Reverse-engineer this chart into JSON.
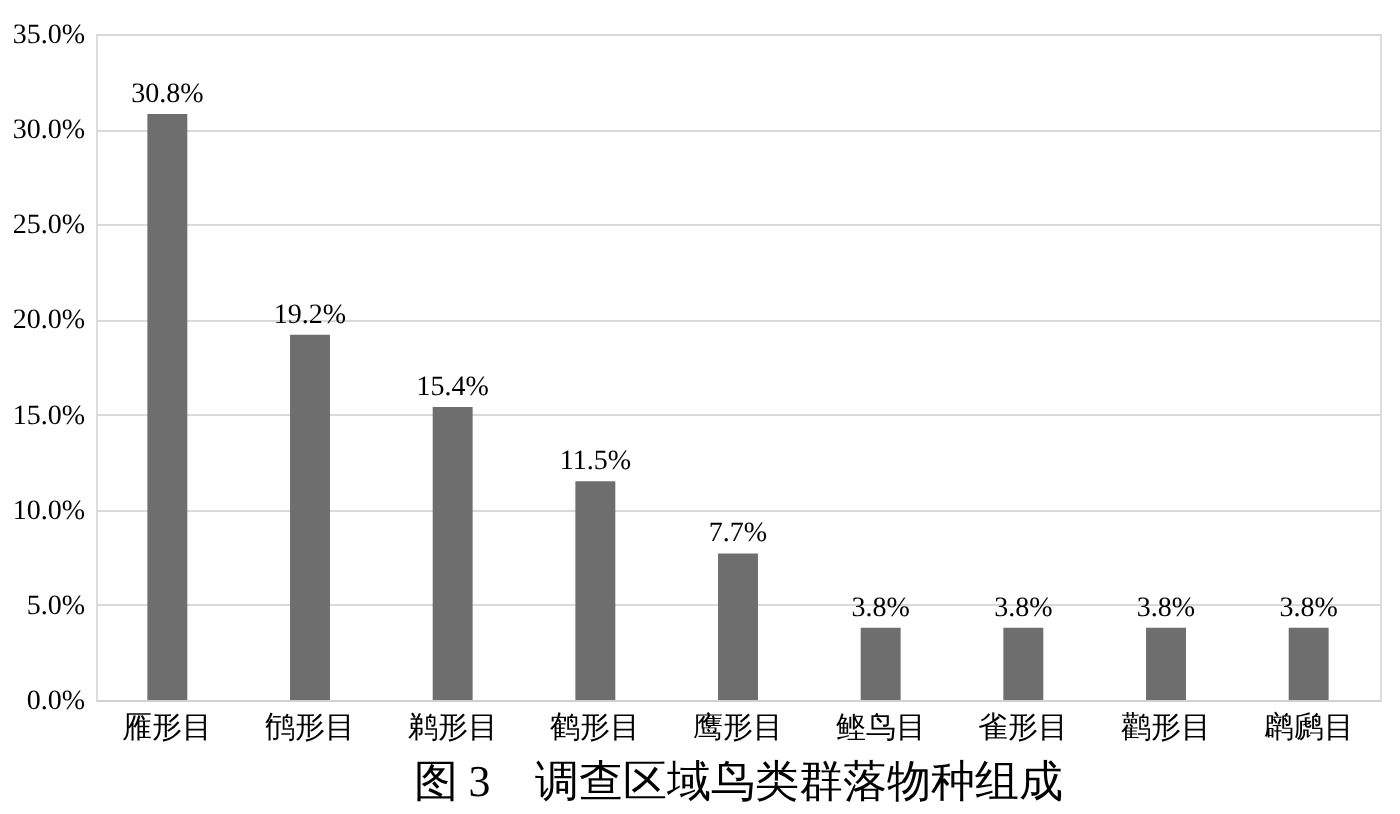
{
  "chart_data": {
    "type": "bar",
    "title": "图 3　调查区域鸟类群落物种组成",
    "categories": [
      "雁形目",
      "鸻形目",
      "鹈形目",
      "鹤形目",
      "鹰形目",
      "鲣鸟目",
      "雀形目",
      "鹳形目",
      "䴙䴘目"
    ],
    "values": [
      30.8,
      19.2,
      15.4,
      11.5,
      7.7,
      3.8,
      3.8,
      3.8,
      3.8
    ],
    "value_labels": [
      "30.8%",
      "19.2%",
      "15.4%",
      "11.5%",
      "7.7%",
      "3.8%",
      "3.8%",
      "3.8%",
      "3.8%"
    ],
    "color": "#6e6e6e",
    "ylim": [
      0,
      35
    ],
    "yticks": [
      {
        "value": 0,
        "label": "0.0%"
      },
      {
        "value": 5,
        "label": "5.0%"
      },
      {
        "value": 10,
        "label": "10.0%"
      },
      {
        "value": 15,
        "label": "15.0%"
      },
      {
        "value": 20,
        "label": "20.0%"
      },
      {
        "value": 25,
        "label": "25.0%"
      },
      {
        "value": 30,
        "label": "30.0%"
      },
      {
        "value": 35,
        "label": "35.0%"
      }
    ],
    "grid": "y"
  }
}
